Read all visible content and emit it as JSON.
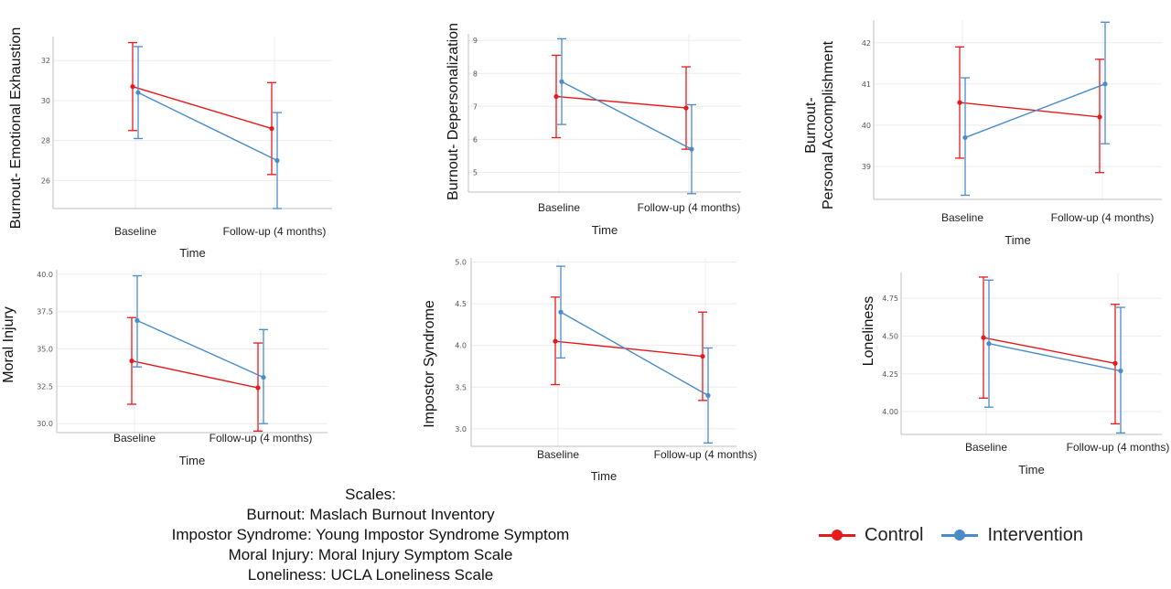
{
  "chart_data": [
    {
      "type": "line",
      "categories": [
        "Baseline",
        "Follow-up (4 months)"
      ],
      "xlabel": "Time",
      "ylabel": "Burnout- Emotional Exhaustion",
      "ylim": [
        24.6,
        33.2
      ],
      "yticks": [
        26,
        28,
        30,
        32
      ],
      "ytick_labels": [
        "26",
        "28",
        "30",
        "32"
      ],
      "series": [
        {
          "name": "Control",
          "values": [
            30.7,
            28.6
          ],
          "lower": [
            28.5,
            26.3
          ],
          "upper": [
            32.9,
            30.9
          ]
        },
        {
          "name": "Intervention",
          "values": [
            30.4,
            27.0
          ],
          "lower": [
            28.1,
            24.6
          ],
          "upper": [
            32.7,
            29.4
          ]
        }
      ]
    },
    {
      "type": "line",
      "categories": [
        "Baseline",
        "Follow-up (4 months)"
      ],
      "xlabel": "Time",
      "ylabel": "Burnout- Depersonalization",
      "ylim": [
        4.4,
        9.2
      ],
      "yticks": [
        5,
        6,
        7,
        8,
        9
      ],
      "ytick_labels": [
        "5",
        "6",
        "7",
        "8",
        "9"
      ],
      "series": [
        {
          "name": "Control",
          "values": [
            7.3,
            6.95
          ],
          "lower": [
            6.05,
            5.7
          ],
          "upper": [
            8.55,
            8.2
          ]
        },
        {
          "name": "Intervention",
          "values": [
            7.75,
            5.7
          ],
          "lower": [
            6.45,
            4.35
          ],
          "upper": [
            9.05,
            7.05
          ]
        }
      ]
    },
    {
      "type": "line",
      "categories": [
        "Baseline",
        "Follow-up (4 months)"
      ],
      "xlabel": "Time",
      "ylabel": "Burnout-\nPersonal Accomplishment",
      "ylim": [
        38.2,
        42.55
      ],
      "yticks": [
        39,
        40,
        41,
        42
      ],
      "ytick_labels": [
        "39",
        "40",
        "41",
        "42"
      ],
      "series": [
        {
          "name": "Control",
          "values": [
            40.55,
            40.2
          ],
          "lower": [
            39.2,
            38.85
          ],
          "upper": [
            41.9,
            41.6
          ]
        },
        {
          "name": "Intervention",
          "values": [
            39.7,
            41.0
          ],
          "lower": [
            38.3,
            39.55
          ],
          "upper": [
            41.15,
            42.5
          ]
        }
      ]
    },
    {
      "type": "line",
      "categories": [
        "Baseline",
        "Follow-up (4 months)"
      ],
      "xlabel": "Time",
      "ylabel": "Moral Injury",
      "ylim": [
        29.4,
        40.3
      ],
      "yticks": [
        30.0,
        32.5,
        35.0,
        37.5,
        40.0
      ],
      "ytick_labels": [
        "30.0",
        "32.5",
        "35.0",
        "37.5",
        "40.0"
      ],
      "series": [
        {
          "name": "Control",
          "values": [
            34.2,
            32.4
          ],
          "lower": [
            31.3,
            29.5
          ],
          "upper": [
            37.1,
            35.4
          ]
        },
        {
          "name": "Intervention",
          "values": [
            36.9,
            33.1
          ],
          "lower": [
            33.8,
            30.0
          ],
          "upper": [
            39.9,
            36.3
          ]
        }
      ]
    },
    {
      "type": "line",
      "categories": [
        "Baseline",
        "Follow-up (4 months)"
      ],
      "xlabel": "Time",
      "ylabel": "Impostor Syndrome",
      "ylim": [
        2.79,
        5.05
      ],
      "yticks": [
        3.0,
        3.5,
        4.0,
        4.5,
        5.0
      ],
      "ytick_labels": [
        "3.0",
        "3.5",
        "4.0",
        "4.5",
        "5.0"
      ],
      "series": [
        {
          "name": "Control",
          "values": [
            4.05,
            3.87
          ],
          "lower": [
            3.53,
            3.34
          ],
          "upper": [
            4.58,
            4.4
          ]
        },
        {
          "name": "Intervention",
          "values": [
            4.4,
            3.4
          ],
          "lower": [
            3.85,
            2.83
          ],
          "upper": [
            4.95,
            3.97
          ]
        }
      ]
    },
    {
      "type": "line",
      "categories": [
        "Baseline",
        "Follow-up (4 months)"
      ],
      "xlabel": "Time",
      "ylabel": "Loneliness",
      "ylim": [
        3.85,
        4.92
      ],
      "yticks": [
        4.0,
        4.25,
        4.5,
        4.75
      ],
      "ytick_labels": [
        "4.00",
        "4.25",
        "4.50",
        "4.75"
      ],
      "series": [
        {
          "name": "Control",
          "values": [
            4.49,
            4.32
          ],
          "lower": [
            4.09,
            3.92
          ],
          "upper": [
            4.89,
            4.71
          ]
        },
        {
          "name": "Intervention",
          "values": [
            4.45,
            4.27
          ],
          "lower": [
            4.03,
            3.86
          ],
          "upper": [
            4.87,
            4.69
          ]
        }
      ]
    }
  ],
  "colors": {
    "Control": "#e41a1c",
    "Intervention": "#4a8bc9"
  },
  "legend": {
    "items": [
      {
        "label": "Control"
      },
      {
        "label": "Intervention"
      }
    ],
    "placement": "bottom-right"
  },
  "footnote": {
    "heading": "Scales:",
    "lines": [
      "Burnout: Maslach Burnout Inventory",
      "Impostor Syndrome: Young Impostor Syndrome Symptom",
      "Moral Injury: Moral Injury Symptom Scale",
      "Loneliness: UCLA Loneliness Scale"
    ]
  }
}
